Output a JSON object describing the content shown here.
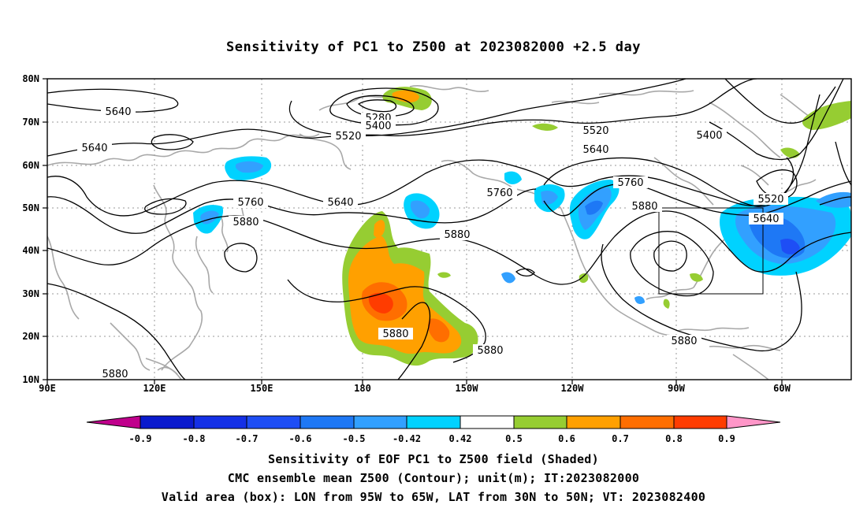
{
  "title": "Sensitivity of PC1 to Z500 at 2023082000 +2.5 day",
  "map": {
    "lat_labels": [
      "80N",
      "70N",
      "60N",
      "50N",
      "40N",
      "30N",
      "20N",
      "10N"
    ],
    "lon_labels": [
      "90E",
      "120E",
      "150E",
      "180",
      "150W",
      "120W",
      "90W",
      "60W"
    ],
    "contour_labels": [
      {
        "text": "5640"
      },
      {
        "text": "5640"
      },
      {
        "text": "5280"
      },
      {
        "text": "5400"
      },
      {
        "text": "5520"
      },
      {
        "text": "5520"
      },
      {
        "text": "5640"
      },
      {
        "text": "5400"
      },
      {
        "text": "5760"
      },
      {
        "text": "5640"
      },
      {
        "text": "5760"
      },
      {
        "text": "5760"
      },
      {
        "text": "5880"
      },
      {
        "text": "5880"
      },
      {
        "text": "5880"
      },
      {
        "text": "5520"
      },
      {
        "text": "5640"
      },
      {
        "text": "5880"
      },
      {
        "text": "5880"
      },
      {
        "text": "5880"
      },
      {
        "text": "5880"
      }
    ],
    "valid_box": {
      "lon_range": [
        "95W",
        "65W"
      ],
      "lat_range": [
        "30N",
        "50N"
      ]
    }
  },
  "colorbar": {
    "labels": [
      "-0.9",
      "-0.8",
      "-0.7",
      "-0.6",
      "-0.5",
      "-0.42",
      "0.42",
      "0.5",
      "0.6",
      "0.7",
      "0.8",
      "0.9"
    ],
    "colors": [
      "#c0008c",
      "#0a1acd",
      "#1430e6",
      "#1e4ef5",
      "#1e78f5",
      "#32a0ff",
      "#00d2ff",
      "#ffffff",
      "#96cd32",
      "#ffa000",
      "#ff6e00",
      "#ff3c00",
      "#ff0000",
      "#ff96c8"
    ]
  },
  "captions": [
    "Sensitivity of EOF PC1 to Z500 field (Shaded)",
    "CMC ensemble mean Z500 (Contour); unit(m); IT:2023082000",
    "Valid area (box): LON from 95W to 65W, LAT from 30N to 50N; VT: 2023082400"
  ]
}
